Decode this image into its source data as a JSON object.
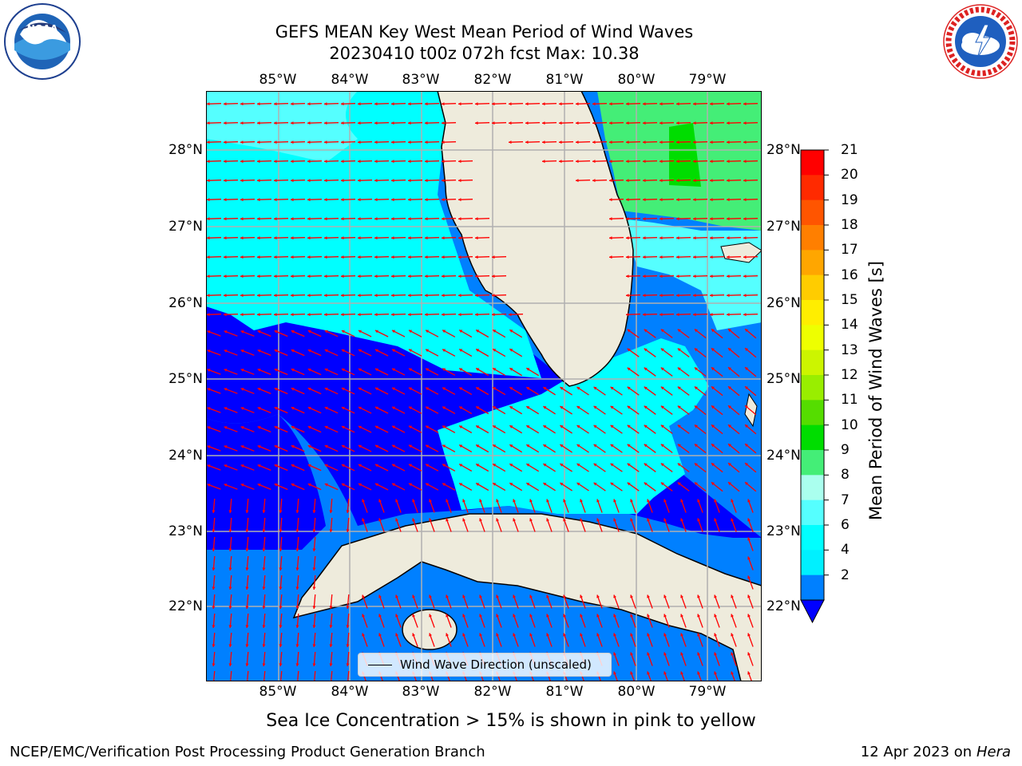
{
  "title": {
    "line1": "GEFS MEAN Key West Mean Period of Wind Waves",
    "line2": "20230410 t00z 072h fcst   Max: 10.38"
  },
  "logos": {
    "noaa": {
      "text": "NOAA",
      "ring_text": "NATIONAL OCEANIC AND ATMOSPHERIC ADMINISTRATION · U.S. DEPARTMENT OF COMMERCE"
    },
    "nws": {
      "ring_text": "NATIONAL WEATHER SERVICE"
    }
  },
  "axes": {
    "lon_labels": [
      "85°W",
      "84°W",
      "83°W",
      "82°W",
      "81°W",
      "80°W",
      "79°W"
    ],
    "lat_labels": [
      "28°N",
      "27°N",
      "26°N",
      "25°N",
      "24°N",
      "23°N",
      "22°N"
    ]
  },
  "legend": {
    "label": "Wind Wave Direction (unscaled)"
  },
  "colorbar": {
    "title": "Mean Period of Wind Waves [s]",
    "ticks": [
      "21",
      "20",
      "19",
      "18",
      "17",
      "16",
      "15",
      "14",
      "13",
      "12",
      "11",
      "10",
      "9",
      "8",
      "7",
      "6",
      "4",
      "2"
    ],
    "colors": [
      "#ff0000",
      "#ff2a00",
      "#ff5500",
      "#ff7f00",
      "#ffa600",
      "#ffcc00",
      "#ffee00",
      "#eeff00",
      "#ccf500",
      "#99ee00",
      "#55dd00",
      "#00dd00",
      "#44ee77",
      "#aaffee",
      "#55ffff",
      "#00ffff",
      "#00f0ff",
      "#0080ff"
    ],
    "under_color": "#0000ff"
  },
  "note": "Sea Ice Concentration > 15% is shown in pink to yellow",
  "footer": {
    "left": "NCEP/EMC/Verification Post Processing Product Generation Branch",
    "date": "12 Apr 2023 on ",
    "machine": "Hera"
  },
  "map_colors": {
    "deep_blue": "#0000ff",
    "mid_blue": "#0080ff",
    "cyan": "#00ffff",
    "light_cyan": "#55ffff",
    "green": "#44ee77",
    "bright_green": "#00dd00",
    "land": "#eeebdc",
    "arrow": "#ff0000",
    "grid": "#b0b0b0"
  }
}
